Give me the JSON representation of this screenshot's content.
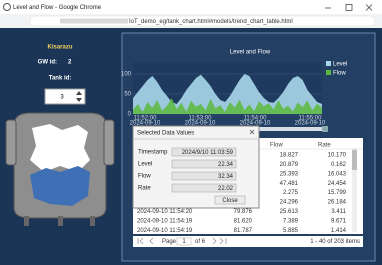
{
  "window": {
    "title": "Level and Flow - Google Chrome",
    "url": "IoT_demo_eg/tank_chart.html#models/trend_chart_table.html"
  },
  "left_panel": {
    "site": "Kisarazu",
    "gw_label": "GW id:",
    "gw_id": "2",
    "tank_label": "Tank id:",
    "tank_id": "3"
  },
  "chart_data": {
    "type": "area",
    "title": "Level and Flow",
    "series": [
      {
        "name": "Level",
        "color": "#a9d8ea",
        "values": [
          40,
          55,
          70,
          85,
          95,
          80,
          60,
          45,
          30,
          25,
          40,
          60,
          75,
          90,
          98,
          85,
          70,
          50,
          35,
          30,
          45,
          65,
          85,
          100,
          95,
          75,
          55,
          40,
          30,
          28,
          40,
          55,
          75,
          90,
          95,
          85,
          60,
          45,
          30,
          25
        ]
      },
      {
        "name": "Flow",
        "color": "#5cb83c",
        "values": [
          10,
          25,
          5,
          30,
          15,
          35,
          8,
          20,
          40,
          12,
          28,
          6,
          33,
          18,
          25,
          9,
          38,
          14,
          22,
          5,
          30,
          16,
          36,
          10,
          24,
          7,
          32,
          19,
          27,
          11,
          35,
          13,
          21,
          6,
          29,
          17,
          34,
          9,
          26,
          15
        ]
      }
    ],
    "ylim": [
      0,
      130
    ],
    "yticks": [
      0,
      50,
      100
    ],
    "x_labels": [
      {
        "time": "11:52:00",
        "date": "2024-09-10"
      },
      {
        "time": "11:53:00",
        "date": "2024-09-10"
      },
      {
        "time": "11:54:00",
        "date": "2024-09-10"
      },
      {
        "time": "11:55:00",
        "date": "2024-09-10"
      }
    ]
  },
  "dialog": {
    "title": "Selected Data Values",
    "rows": [
      {
        "label": "Timestamp",
        "value": "2024/9/10 11:03:59"
      },
      {
        "label": "Level",
        "value": "22.34"
      },
      {
        "label": "Flow",
        "value": "32.34"
      },
      {
        "label": "Rate",
        "value": "22.02"
      }
    ],
    "button": "Close"
  },
  "table": {
    "columns": [
      "Flow",
      "Rate"
    ],
    "rows": [
      {
        "flow": "18.827",
        "rate": "10.170"
      },
      {
        "flow": "20.879",
        "rate": "0.162"
      },
      {
        "flow": "25.393",
        "rate": "16.043"
      },
      {
        "flow": "47.481",
        "rate": "24.454"
      },
      {
        "flow": "2.275",
        "rate": "15.799"
      },
      {
        "flow": "24.296",
        "rate": "26.184"
      },
      {
        "timestamp": "2024-09-10 11:54:20",
        "level": "79.876",
        "flow": "25.613",
        "rate": "3.411"
      },
      {
        "timestamp": "2024-09-10 11:54:19",
        "level": "81.620",
        "flow": "7.389",
        "rate": "9.671"
      },
      {
        "timestamp": "2024-09-10 11:54:19",
        "level": "81.787",
        "flow": "5.885",
        "rate": "1.414"
      }
    ]
  },
  "pager": {
    "page_label": "Page",
    "page": "1",
    "of": "of 6",
    "items": "1 - 40 of 203 items"
  }
}
